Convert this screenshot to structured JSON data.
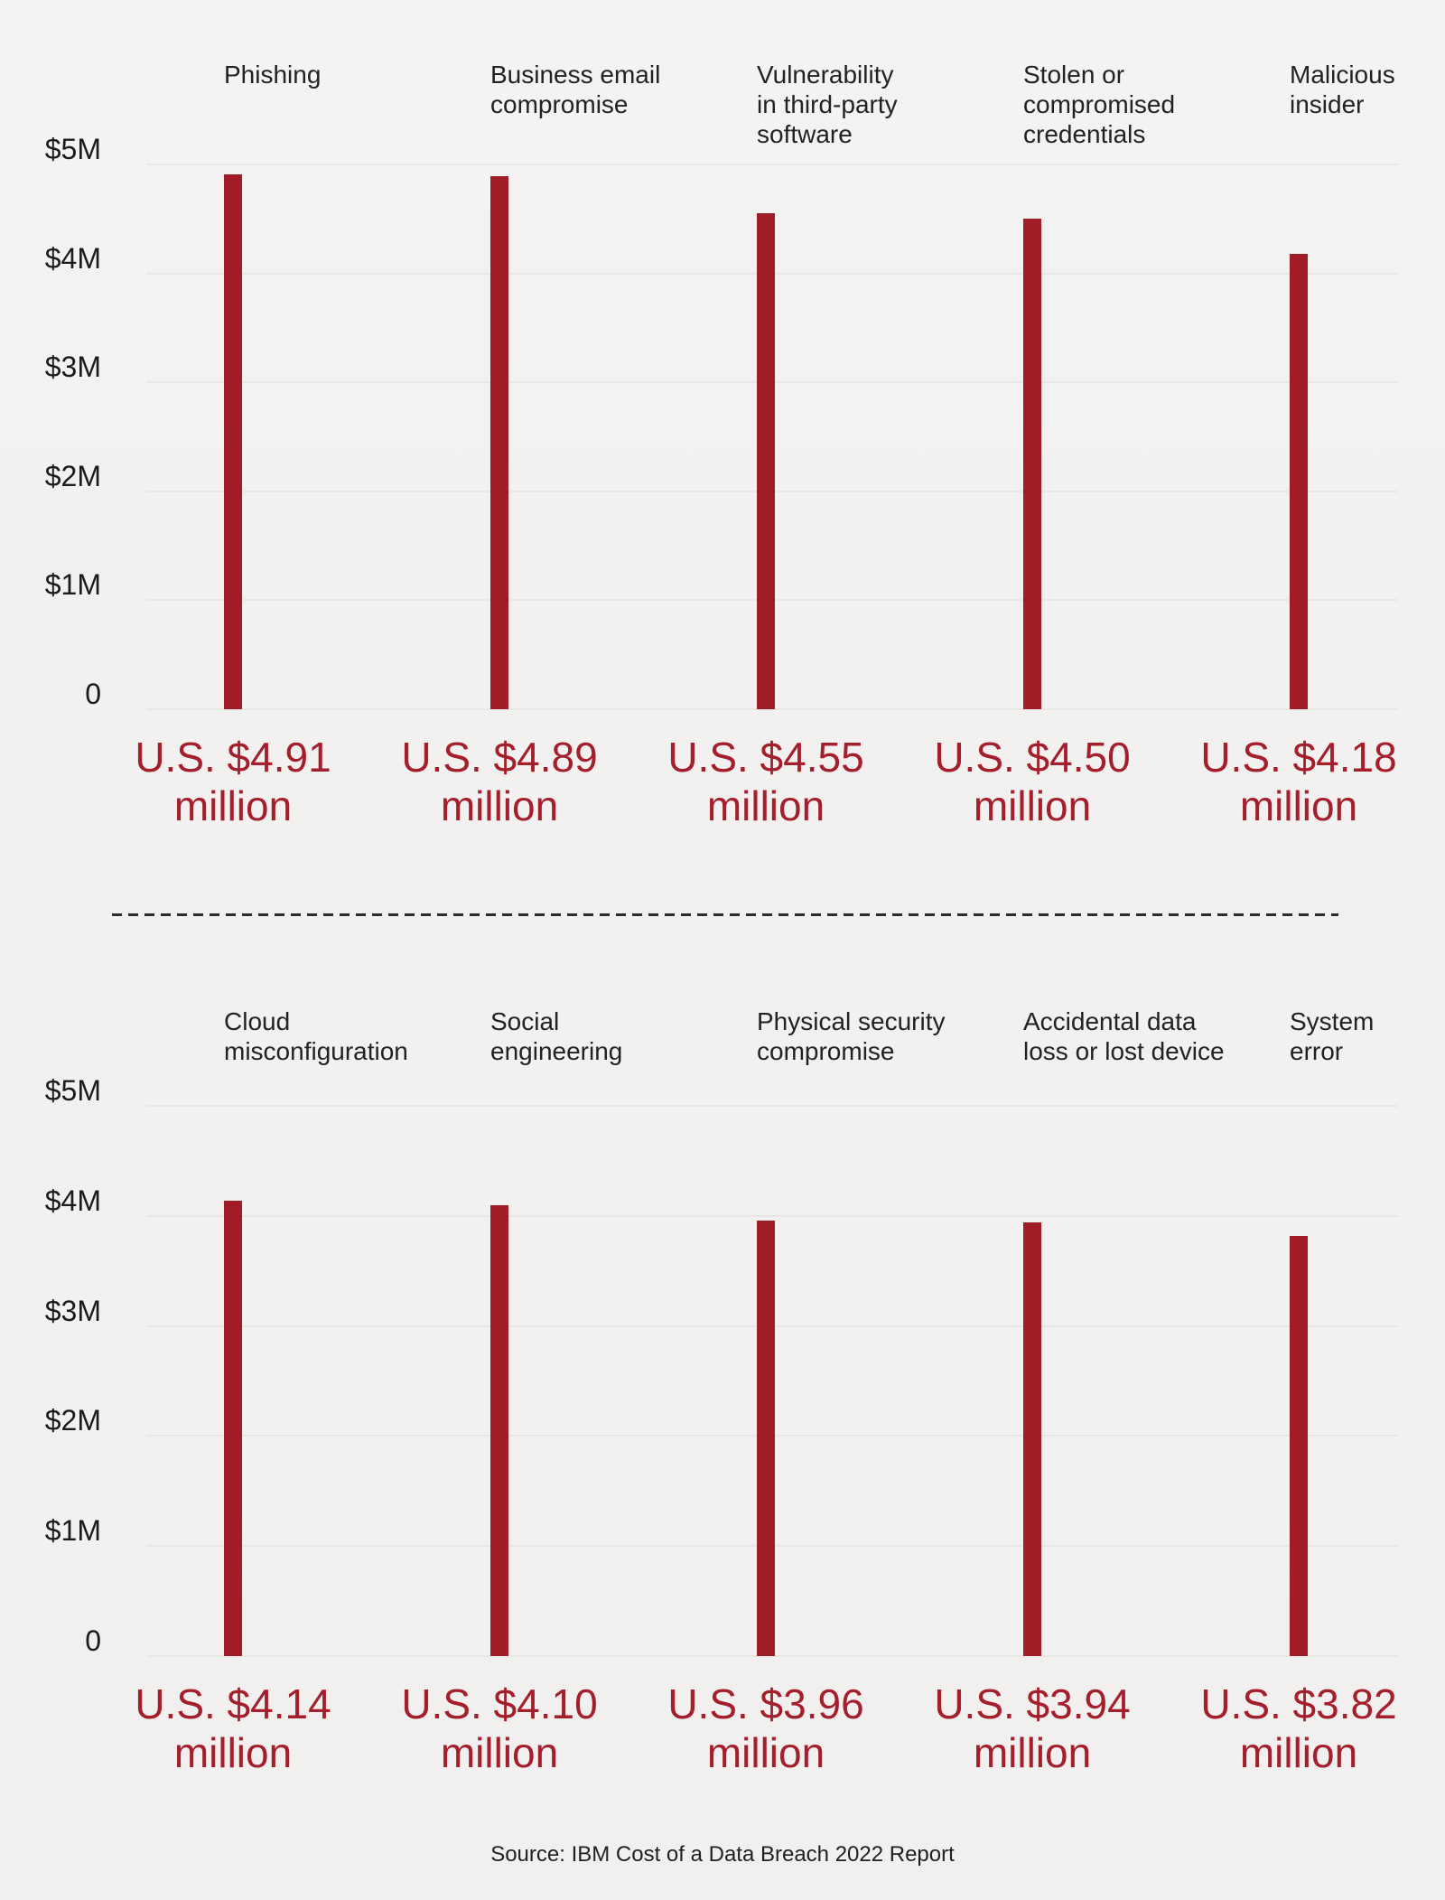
{
  "source": "Source: IBM Cost of a Data Breach 2022 Report",
  "colors": {
    "background": "#f2f1f0",
    "bar": "#a01d28",
    "value_text": "#a41e2b",
    "header_text": "#232122",
    "axis_text": "#1c1a1b",
    "gridline": "#e8e7e6",
    "divider": "#2d2b2c"
  },
  "chart_data": [
    {
      "type": "bar",
      "title": "",
      "xlabel": "",
      "ylabel": "",
      "ylim": [
        0,
        5
      ],
      "grid": true,
      "y_ticks": [
        "$5M",
        "$4M",
        "$3M",
        "$2M",
        "$1M",
        "0"
      ],
      "categories": [
        "Phishing",
        "Business email compromise",
        "Vulnerability in third-party software",
        "Stolen or compromised credentials",
        "Malicious insider"
      ],
      "category_lines": [
        [
          "Phishing"
        ],
        [
          "Business email",
          "compromise"
        ],
        [
          "Vulnerability",
          "in third-party",
          "software"
        ],
        [
          "Stolen or",
          "compromised",
          "credentials"
        ],
        [
          "Malicious",
          "insider"
        ]
      ],
      "values": [
        4.91,
        4.89,
        4.55,
        4.5,
        4.18
      ],
      "value_labels": [
        "U.S. $4.91 million",
        "U.S. $4.89 million",
        "U.S. $4.55 million",
        "U.S. $4.50 million",
        "U.S. $4.18 million"
      ]
    },
    {
      "type": "bar",
      "title": "",
      "xlabel": "",
      "ylabel": "",
      "ylim": [
        0,
        5
      ],
      "grid": true,
      "y_ticks": [
        "$5M",
        "$4M",
        "$3M",
        "$2M",
        "$1M",
        "0"
      ],
      "categories": [
        "Cloud misconfiguration",
        "Social engineering",
        "Physical security compromise",
        "Accidental data loss or lost device",
        "System error"
      ],
      "category_lines": [
        [
          "Cloud",
          "misconfiguration"
        ],
        [
          "Social",
          "engineering"
        ],
        [
          "Physical security",
          "compromise"
        ],
        [
          "Accidental data",
          "loss or lost device"
        ],
        [
          "System",
          "error"
        ]
      ],
      "values": [
        4.14,
        4.1,
        3.96,
        3.94,
        3.82
      ],
      "value_labels": [
        "U.S. $4.14 million",
        "U.S. $4.10 million",
        "U.S. $3.96 million",
        "U.S. $3.94 million",
        "U.S. $3.82 million"
      ]
    }
  ]
}
